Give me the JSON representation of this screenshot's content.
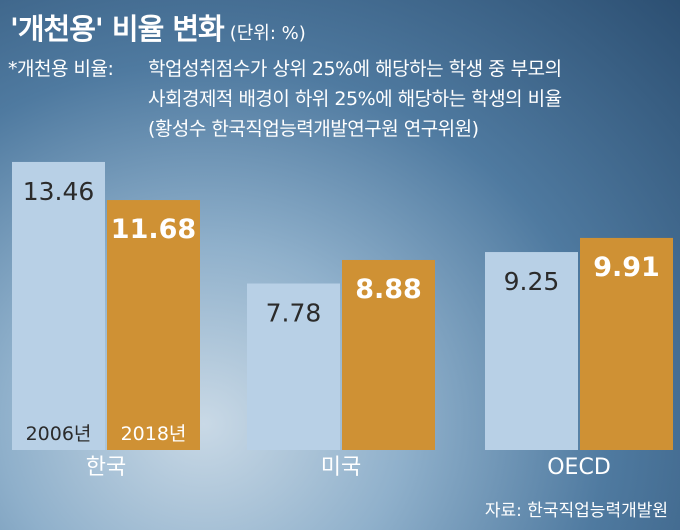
{
  "title": "'개천용' 비율 변화",
  "unit": "(단위: %)",
  "note": {
    "label": "*개천용 비율:",
    "lines": [
      "학업성취점수가 상위 25%에 해당하는 학생 중 부모의",
      "사회경제적 배경이 하위 25%에 해당하는 학생의 비율",
      "(황성수 한국직업능력개발연구원 연구위원)"
    ]
  },
  "source": "자료: 한국직업능력개발원",
  "colors": {
    "year_2006": "#b8d0e6",
    "year_2018": "#cf9134",
    "text_dark": "#2b2b2b",
    "text_light": "#ffffff"
  },
  "chart_data": {
    "type": "bar",
    "categories": [
      "한국",
      "미국",
      "OECD"
    ],
    "series": [
      {
        "name": "2006년",
        "values": [
          13.46,
          7.78,
          9.25
        ]
      },
      {
        "name": "2018년",
        "values": [
          11.68,
          8.88,
          9.91
        ]
      }
    ],
    "value_labels": [
      [
        "13.46",
        "7.78",
        "9.25"
      ],
      [
        "11.68",
        "8.88",
        "9.91"
      ]
    ],
    "legend": "inside-bars-bottom",
    "grid": false
  }
}
